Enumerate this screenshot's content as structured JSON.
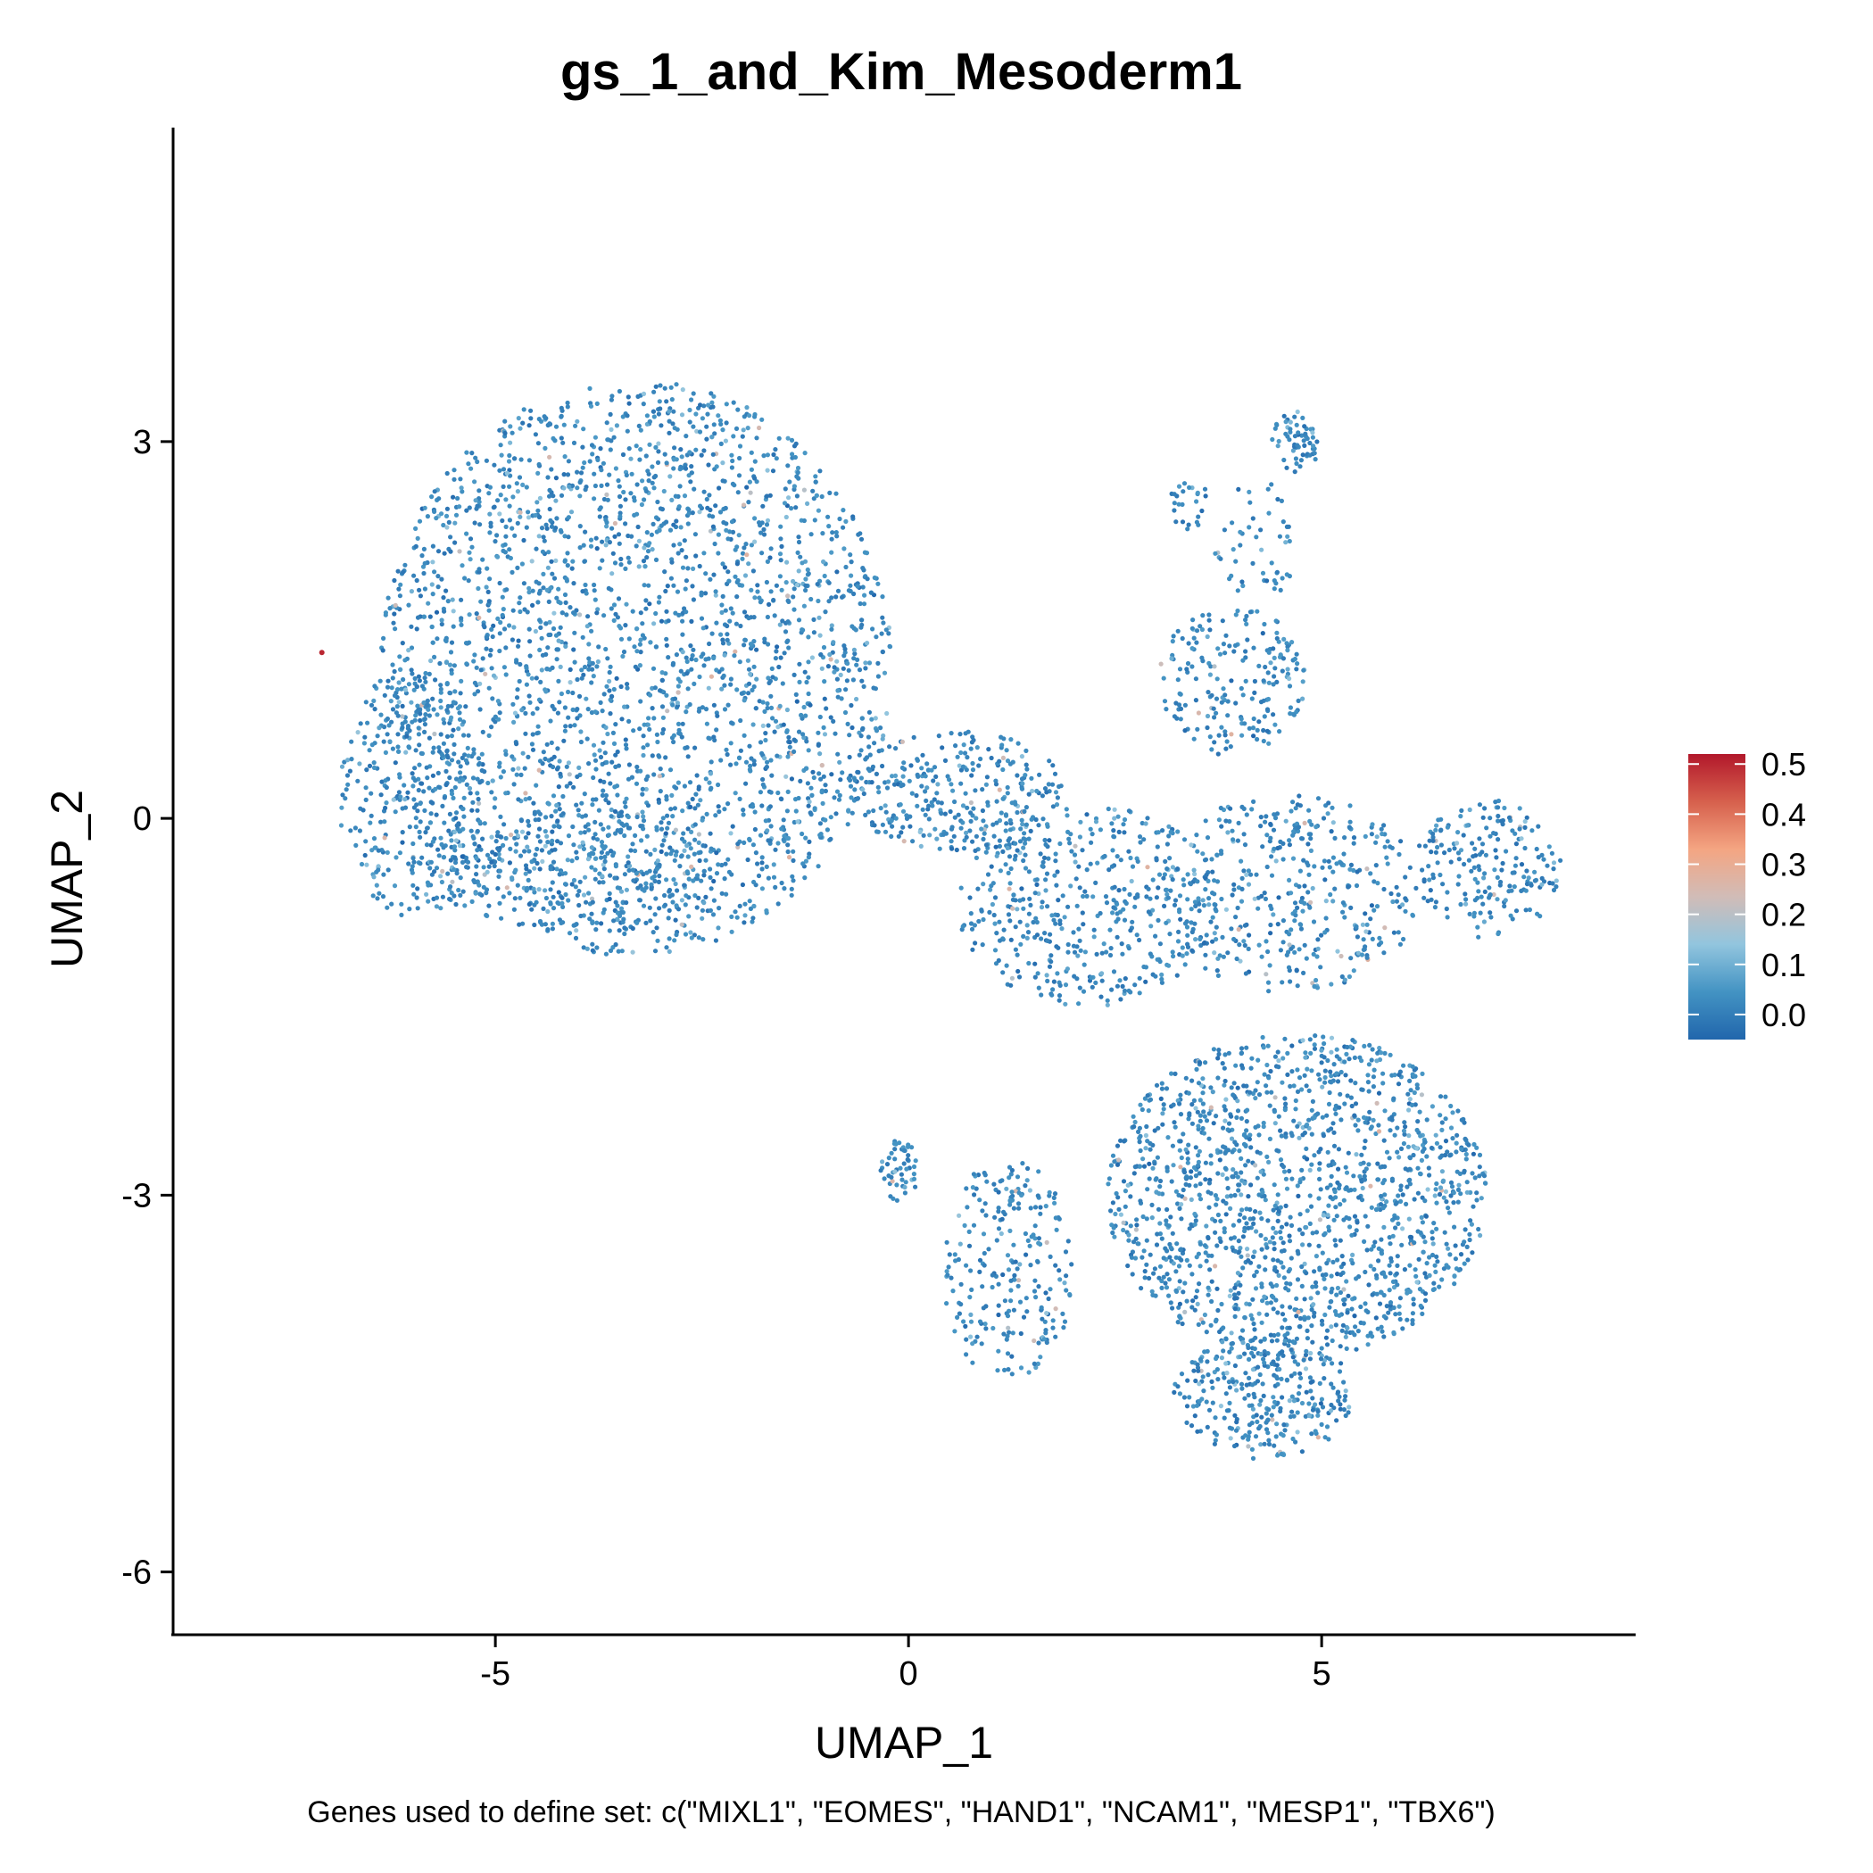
{
  "chart_data": {
    "type": "scatter",
    "title": "gs_1_and_Kim_Mesoderm1",
    "xlabel": "UMAP_1",
    "ylabel": "UMAP_2",
    "caption": "Genes used to define set: c(\"MIXL1\", \"EOMES\", \"HAND1\", \"NCAM1\", \"MESP1\", \"TBX6\")",
    "xlim": [
      -8.9,
      8.8
    ],
    "ylim": [
      -6.5,
      5.5
    ],
    "x_ticks": [
      -5,
      0,
      5
    ],
    "x_tick_labels": [
      "-5",
      "0",
      "5"
    ],
    "y_ticks": [
      3,
      0,
      -3,
      -6
    ],
    "y_tick_labels": [
      "3",
      "0",
      "-3",
      "-6"
    ],
    "grid": false,
    "legend": {
      "position": "right",
      "type": "colorbar",
      "labels": [
        "0.5",
        "0.4",
        "0.3",
        "0.2",
        "0.1",
        "0.0"
      ],
      "values": [
        0.5,
        0.4,
        0.3,
        0.2,
        0.1,
        0.0
      ],
      "range": [
        -0.05,
        0.52
      ],
      "colors": [
        "#2166ac",
        "#4393c3",
        "#92c5de",
        "#d1bcb7",
        "#f4a582",
        "#d6604d",
        "#b2182b"
      ]
    },
    "clusters": [
      {
        "name": "left-mass",
        "cx": -3.3,
        "cy": 1.2,
        "rx": 3.1,
        "ry": 2.3,
        "n": 2600
      },
      {
        "name": "left-lobe-west",
        "cx": -6.0,
        "cy": 0.2,
        "rx": 0.9,
        "ry": 1.0,
        "n": 300
      },
      {
        "name": "left-bottom",
        "cx": -4.0,
        "cy": -0.4,
        "rx": 1.8,
        "ry": 0.5,
        "n": 260
      },
      {
        "name": "bridge",
        "cx": 0.6,
        "cy": 0.2,
        "rx": 1.3,
        "ry": 0.5,
        "n": 300
      },
      {
        "name": "center-diagonal",
        "cx": 2.2,
        "cy": -0.7,
        "rx": 1.6,
        "ry": 0.8,
        "n": 450
      },
      {
        "name": "upper-right-arm",
        "cx": 3.9,
        "cy": 1.1,
        "rx": 0.9,
        "ry": 0.6,
        "n": 200
      },
      {
        "name": "arm-stalk",
        "cx": 4.2,
        "cy": 2.2,
        "rx": 0.5,
        "ry": 0.5,
        "n": 50
      },
      {
        "name": "arm-tip",
        "cx": 4.7,
        "cy": 3.0,
        "rx": 0.3,
        "ry": 0.25,
        "n": 60
      },
      {
        "name": "small-arm",
        "cx": 3.4,
        "cy": 2.5,
        "rx": 0.25,
        "ry": 0.2,
        "n": 25
      },
      {
        "name": "right-arm",
        "cx": 7.0,
        "cy": -0.4,
        "rx": 0.9,
        "ry": 0.55,
        "n": 200
      },
      {
        "name": "right-middle",
        "cx": 4.6,
        "cy": -0.6,
        "rx": 1.6,
        "ry": 0.8,
        "n": 400
      },
      {
        "name": "lower-right",
        "cx": 4.7,
        "cy": -3.0,
        "rx": 2.3,
        "ry": 1.3,
        "n": 1500
      },
      {
        "name": "lower-bottom",
        "cx": 4.3,
        "cy": -4.6,
        "rx": 1.1,
        "ry": 0.5,
        "n": 300
      },
      {
        "name": "lower-left-strand",
        "cx": 1.2,
        "cy": -3.6,
        "rx": 0.8,
        "ry": 0.9,
        "n": 240
      },
      {
        "name": "lower-left-isolate",
        "cx": -0.1,
        "cy": -2.8,
        "rx": 0.25,
        "ry": 0.25,
        "n": 50
      }
    ]
  }
}
